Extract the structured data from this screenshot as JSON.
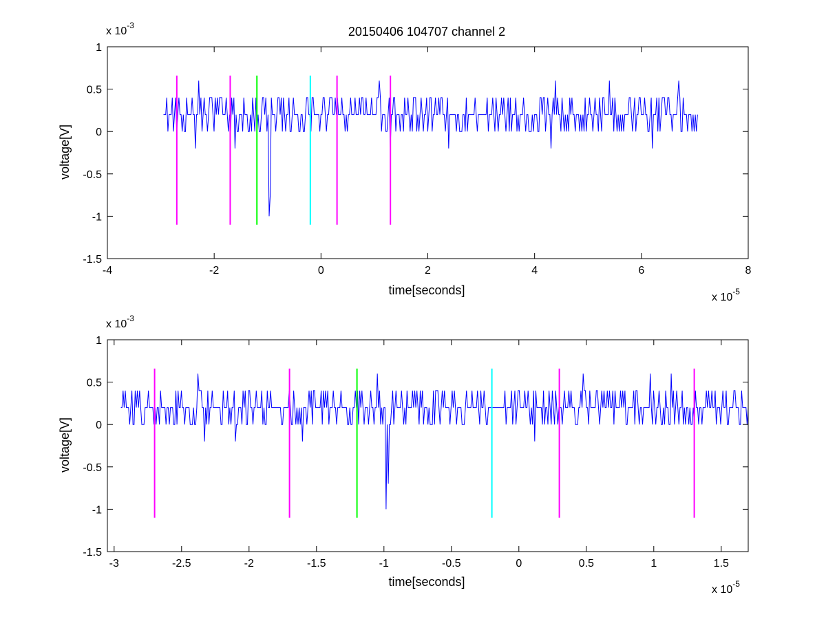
{
  "chart_data": [
    {
      "type": "line",
      "title": "20150406 104707 channel 2",
      "xlabel": "time[seconds]",
      "ylabel": "voltage[V]",
      "x_exponent_base": "x 10",
      "x_exponent_power": "-5",
      "y_exponent_base": "x 10",
      "y_exponent_power": "-3",
      "xlim": [
        -4,
        8
      ],
      "ylim": [
        -1.5,
        1
      ],
      "xticks": [
        -4,
        -2,
        0,
        2,
        4,
        6,
        8
      ],
      "xtick_labels": [
        "-4",
        "-2",
        "0",
        "2",
        "4",
        "6",
        "8"
      ],
      "yticks": [
        -1.5,
        -1,
        -0.5,
        0,
        0.5,
        1
      ],
      "ytick_labels": [
        "-1.5",
        "-1",
        "-0.5",
        "0",
        "0.5",
        "1"
      ],
      "grid": false,
      "signal": {
        "color": "#0000ff",
        "x_start": -2.95,
        "x_end": 7.05,
        "baseline": 0.2,
        "levels": [
          0,
          0.2,
          0.4
        ],
        "dips": [
          {
            "x": -2.35,
            "y": -0.2
          },
          {
            "x": -1.6,
            "y": -0.2
          },
          {
            "x": -0.98,
            "y": -1.0
          },
          {
            "x": -0.96,
            "y": -0.75
          },
          {
            "x": 1.3,
            "y": -0.2
          },
          {
            "x": 2.4,
            "y": -0.2
          },
          {
            "x": 4.3,
            "y": -0.2
          },
          {
            "x": 5.4,
            "y": -0.2
          },
          {
            "x": 6.2,
            "y": -0.2
          }
        ],
        "peaks": [
          {
            "x": -2.3,
            "y": 0.6
          },
          {
            "x": 1.1,
            "y": 0.6
          },
          {
            "x": 4.4,
            "y": 0.6
          },
          {
            "x": 5.4,
            "y": 0.6
          },
          {
            "x": 6.7,
            "y": 0.6
          }
        ]
      },
      "markers": [
        {
          "x": -2.7,
          "y0": -1.1,
          "y1": 0.66,
          "color": "#ff00ff"
        },
        {
          "x": -1.7,
          "y0": -1.1,
          "y1": 0.66,
          "color": "#ff00ff"
        },
        {
          "x": -1.2,
          "y0": -1.1,
          "y1": 0.66,
          "color": "#00ff00"
        },
        {
          "x": -0.2,
          "y0": -1.1,
          "y1": 0.66,
          "color": "#00ffff"
        },
        {
          "x": 0.3,
          "y0": -1.1,
          "y1": 0.66,
          "color": "#ff00ff"
        },
        {
          "x": 1.3,
          "y0": -1.1,
          "y1": 0.66,
          "color": "#ff00ff"
        }
      ]
    },
    {
      "type": "line",
      "title": "",
      "xlabel": "time[seconds]",
      "ylabel": "voltage[V]",
      "x_exponent_base": "x 10",
      "x_exponent_power": "-5",
      "y_exponent_base": "x 10",
      "y_exponent_power": "-3",
      "xlim": [
        -3.05,
        1.7
      ],
      "ylim": [
        -1.5,
        1
      ],
      "xticks": [
        -3,
        -2.5,
        -2,
        -1.5,
        -1,
        -0.5,
        0,
        0.5,
        1,
        1.5
      ],
      "xtick_labels": [
        "-3",
        "-2.5",
        "-2",
        "-1.5",
        "-1",
        "-0.5",
        "0",
        "0.5",
        "1",
        "1.5"
      ],
      "yticks": [
        -1.5,
        -1,
        -0.5,
        0,
        0.5,
        1
      ],
      "ytick_labels": [
        "-1.5",
        "-1",
        "-0.5",
        "0",
        "0.5",
        "1"
      ],
      "grid": false,
      "signal": {
        "color": "#0000ff",
        "x_start": -2.95,
        "x_end": 1.7,
        "baseline": 0.2,
        "levels": [
          0,
          0.2,
          0.4
        ],
        "dips": [
          {
            "x": -2.33,
            "y": -0.2
          },
          {
            "x": -2.1,
            "y": -0.2
          },
          {
            "x": -1.6,
            "y": -0.2
          },
          {
            "x": -0.985,
            "y": -1.0
          },
          {
            "x": -0.97,
            "y": -0.7
          },
          {
            "x": 0.12,
            "y": -0.2
          }
        ],
        "peaks": [
          {
            "x": -2.38,
            "y": 0.6
          },
          {
            "x": -1.05,
            "y": 0.6
          },
          {
            "x": 0.48,
            "y": 0.6
          },
          {
            "x": 0.97,
            "y": 0.6
          },
          {
            "x": 1.13,
            "y": 0.6
          }
        ]
      },
      "markers": [
        {
          "x": -2.7,
          "y0": -1.1,
          "y1": 0.66,
          "color": "#ff00ff"
        },
        {
          "x": -1.7,
          "y0": -1.1,
          "y1": 0.66,
          "color": "#ff00ff"
        },
        {
          "x": -1.2,
          "y0": -1.1,
          "y1": 0.66,
          "color": "#00ff00"
        },
        {
          "x": -0.2,
          "y0": -1.1,
          "y1": 0.66,
          "color": "#00ffff"
        },
        {
          "x": 0.3,
          "y0": -1.1,
          "y1": 0.66,
          "color": "#ff00ff"
        },
        {
          "x": 1.3,
          "y0": -1.1,
          "y1": 0.66,
          "color": "#ff00ff"
        }
      ]
    }
  ]
}
